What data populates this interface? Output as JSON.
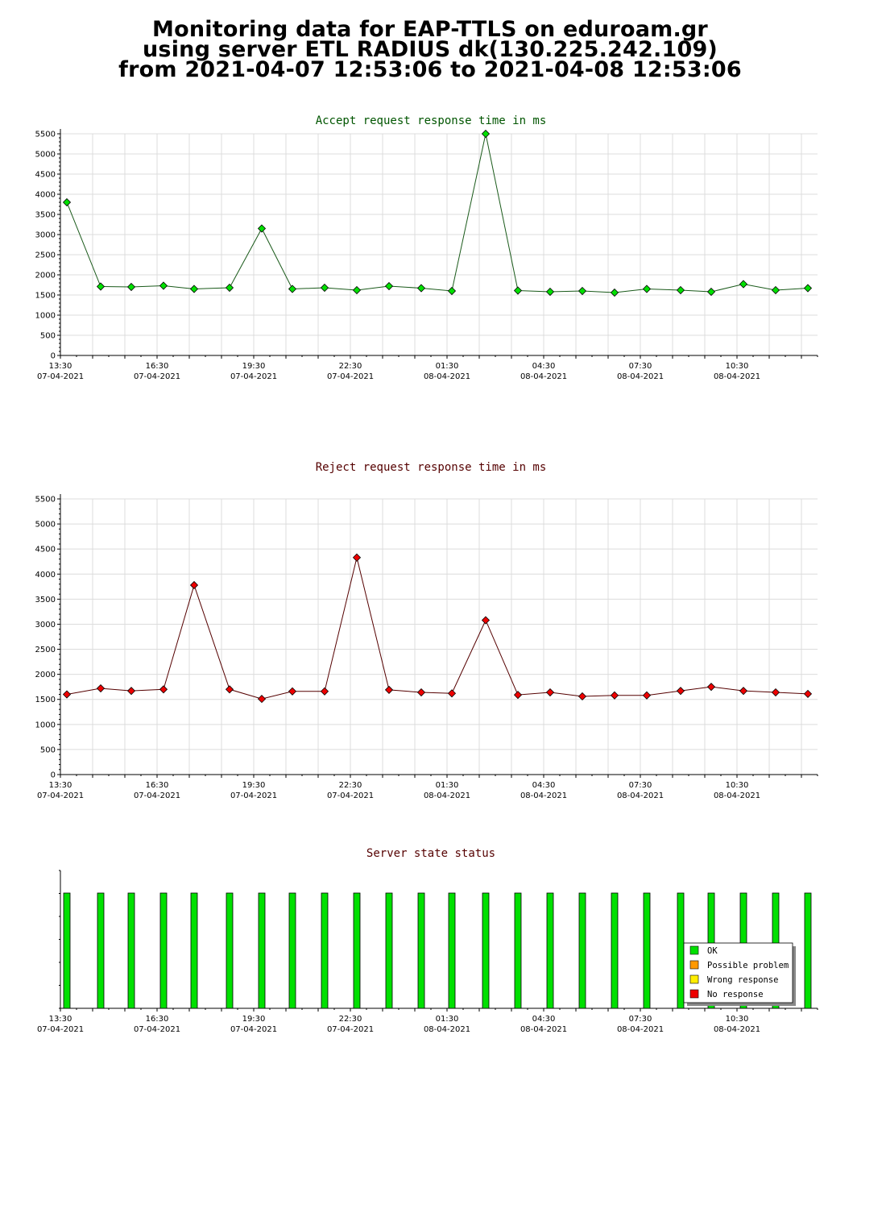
{
  "header": {
    "line1": "Monitoring data for EAP-TTLS on eduroam.gr",
    "line2": "using server ETL RADIUS dk(130.225.242.109)",
    "line3": "from 2021-04-07 12:53:06 to 2021-04-08 12:53:06"
  },
  "colors": {
    "accept_point": "#00e000",
    "accept_line": "#1a5a1a",
    "accept_title": "#005500",
    "reject_point": "#ee0000",
    "reject_line": "#550000",
    "reject_title": "#550000",
    "status_title": "#550000",
    "grid": "#dcdcdc",
    "ok": "#00e000",
    "possible": "#ff9900",
    "wrong": "#ffee00",
    "noresp": "#ee0000"
  },
  "chart_data": [
    {
      "type": "line",
      "title": "Accept request response time in ms",
      "x_range_hours": [
        0,
        23.5
      ],
      "ylim": [
        0,
        5500
      ],
      "y_ticks": [
        0,
        500,
        1000,
        1500,
        2000,
        2500,
        3000,
        3500,
        4000,
        4500,
        5000,
        5500
      ],
      "x_tick_labels": [
        {
          "h": 0,
          "time": "13:30",
          "date": "07-04-2021"
        },
        {
          "h": 3,
          "time": "16:30",
          "date": "07-04-2021"
        },
        {
          "h": 6,
          "time": "19:30",
          "date": "07-04-2021"
        },
        {
          "h": 9,
          "time": "22:30",
          "date": "07-04-2021"
        },
        {
          "h": 12,
          "time": "01:30",
          "date": "08-04-2021"
        },
        {
          "h": 15,
          "time": "04:30",
          "date": "08-04-2021"
        },
        {
          "h": 18,
          "time": "07:30",
          "date": "08-04-2021"
        },
        {
          "h": 21,
          "time": "10:30",
          "date": "08-04-2021"
        }
      ],
      "grid": true,
      "series": [
        {
          "x": [
            0.2,
            1.25,
            2.2,
            3.2,
            4.15,
            5.25,
            6.25,
            7.2,
            8.2,
            9.2,
            10.2,
            11.2,
            12.15,
            13.2,
            14.2,
            15.2,
            16.2,
            17.2,
            18.2,
            19.25,
            20.2,
            21.2,
            22.2,
            23.2
          ],
          "values": [
            3800,
            1710,
            1700,
            1730,
            1650,
            1680,
            3150,
            1650,
            1680,
            1620,
            1720,
            1670,
            1600,
            5500,
            1610,
            1580,
            1600,
            1560,
            1650,
            1620,
            1580,
            1770,
            1620,
            1670
          ]
        }
      ]
    },
    {
      "type": "line",
      "title": "Reject request response time in ms",
      "x_range_hours": [
        0,
        23.5
      ],
      "ylim": [
        0,
        5500
      ],
      "y_ticks": [
        0,
        500,
        1000,
        1500,
        2000,
        2500,
        3000,
        3500,
        4000,
        4500,
        5000,
        5500
      ],
      "x_tick_labels": [
        {
          "h": 0,
          "time": "13:30",
          "date": "07-04-2021"
        },
        {
          "h": 3,
          "time": "16:30",
          "date": "07-04-2021"
        },
        {
          "h": 6,
          "time": "19:30",
          "date": "07-04-2021"
        },
        {
          "h": 9,
          "time": "22:30",
          "date": "07-04-2021"
        },
        {
          "h": 12,
          "time": "01:30",
          "date": "08-04-2021"
        },
        {
          "h": 15,
          "time": "04:30",
          "date": "08-04-2021"
        },
        {
          "h": 18,
          "time": "07:30",
          "date": "08-04-2021"
        },
        {
          "h": 21,
          "time": "10:30",
          "date": "08-04-2021"
        }
      ],
      "grid": true,
      "series": [
        {
          "x": [
            0.2,
            1.25,
            2.2,
            3.2,
            4.15,
            5.25,
            6.25,
            7.2,
            8.2,
            9.2,
            10.2,
            11.2,
            12.15,
            13.2,
            14.2,
            15.2,
            16.2,
            17.2,
            18.2,
            19.25,
            20.2,
            21.2,
            22.2,
            23.2
          ],
          "values": [
            1600,
            1720,
            1670,
            1700,
            3780,
            1700,
            1510,
            1660,
            1660,
            4330,
            1690,
            1640,
            1620,
            3080,
            1590,
            1640,
            1560,
            1580,
            1580,
            1670,
            1750,
            1670,
            1640,
            1610
          ]
        }
      ]
    },
    {
      "type": "bar",
      "title": "Server state status",
      "x_range_hours": [
        0,
        23.5
      ],
      "x_tick_labels": [
        {
          "h": 0,
          "time": "13:30",
          "date": "07-04-2021"
        },
        {
          "h": 3,
          "time": "16:30",
          "date": "07-04-2021"
        },
        {
          "h": 6,
          "time": "19:30",
          "date": "07-04-2021"
        },
        {
          "h": 9,
          "time": "22:30",
          "date": "07-04-2021"
        },
        {
          "h": 12,
          "time": "01:30",
          "date": "08-04-2021"
        },
        {
          "h": 15,
          "time": "04:30",
          "date": "08-04-2021"
        },
        {
          "h": 18,
          "time": "07:30",
          "date": "08-04-2021"
        },
        {
          "h": 21,
          "time": "10:30",
          "date": "08-04-2021"
        }
      ],
      "x": [
        0.2,
        1.25,
        2.2,
        3.2,
        4.15,
        5.25,
        6.25,
        7.2,
        8.2,
        9.2,
        10.2,
        11.2,
        12.15,
        13.2,
        14.2,
        15.2,
        16.2,
        17.2,
        18.2,
        19.25,
        20.2,
        21.2,
        22.2,
        23.2
      ],
      "states": [
        "OK",
        "OK",
        "OK",
        "OK",
        "OK",
        "OK",
        "OK",
        "OK",
        "OK",
        "OK",
        "OK",
        "OK",
        "OK",
        "OK",
        "OK",
        "OK",
        "OK",
        "OK",
        "OK",
        "OK",
        "OK",
        "OK",
        "OK",
        "OK"
      ],
      "legend_placement": "bottom-right",
      "legend": [
        {
          "label": "OK",
          "color_key": "ok"
        },
        {
          "label": "Possible problem",
          "color_key": "possible"
        },
        {
          "label": "Wrong response",
          "color_key": "wrong"
        },
        {
          "label": "No response",
          "color_key": "noresp"
        }
      ]
    }
  ]
}
